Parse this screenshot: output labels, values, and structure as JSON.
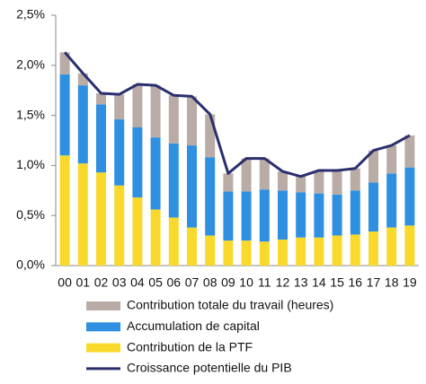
{
  "chart_data": {
    "type": "bar",
    "stacked": true,
    "categories": [
      "00",
      "01",
      "02",
      "03",
      "04",
      "05",
      "06",
      "07",
      "08",
      "09",
      "10",
      "11",
      "12",
      "13",
      "14",
      "15",
      "16",
      "17",
      "18",
      "19"
    ],
    "series": [
      {
        "name": "Contribution totale du travail (heures)",
        "color": "#b9aca6",
        "values": [
          0.22,
          0.12,
          0.11,
          0.25,
          0.43,
          0.52,
          0.48,
          0.49,
          0.43,
          0.18,
          0.33,
          0.31,
          0.19,
          0.16,
          0.23,
          0.24,
          0.22,
          0.32,
          0.28,
          0.32
        ]
      },
      {
        "name": "Accumulation de capital",
        "color": "#2f8fe0",
        "values": [
          0.81,
          0.78,
          0.68,
          0.66,
          0.7,
          0.72,
          0.74,
          0.82,
          0.78,
          0.49,
          0.49,
          0.52,
          0.49,
          0.45,
          0.44,
          0.41,
          0.44,
          0.49,
          0.54,
          0.58
        ]
      },
      {
        "name": "Contribution de la PTF",
        "color": "#f9da2c",
        "values": [
          1.1,
          1.02,
          0.93,
          0.8,
          0.68,
          0.56,
          0.48,
          0.38,
          0.3,
          0.25,
          0.25,
          0.24,
          0.26,
          0.28,
          0.28,
          0.3,
          0.31,
          0.34,
          0.38,
          0.4
        ]
      },
      {
        "name": "Croissance potentielle du PIB",
        "type": "line",
        "color": "#2b2f6e",
        "values": [
          2.13,
          1.92,
          1.72,
          1.71,
          1.81,
          1.8,
          1.7,
          1.69,
          1.51,
          0.92,
          1.07,
          1.07,
          0.94,
          0.89,
          0.95,
          0.95,
          0.97,
          1.15,
          1.2,
          1.3
        ]
      }
    ],
    "ylim": [
      0,
      2.5
    ],
    "yticks": [
      {
        "value": 0,
        "label": "0,0%"
      },
      {
        "value": 0.5,
        "label": "0,5%"
      },
      {
        "value": 1,
        "label": "1,0%"
      },
      {
        "value": 1.5,
        "label": "1,5%"
      },
      {
        "value": 2,
        "label": "2,0%"
      },
      {
        "value": 2.5,
        "label": "2,5%"
      }
    ]
  }
}
